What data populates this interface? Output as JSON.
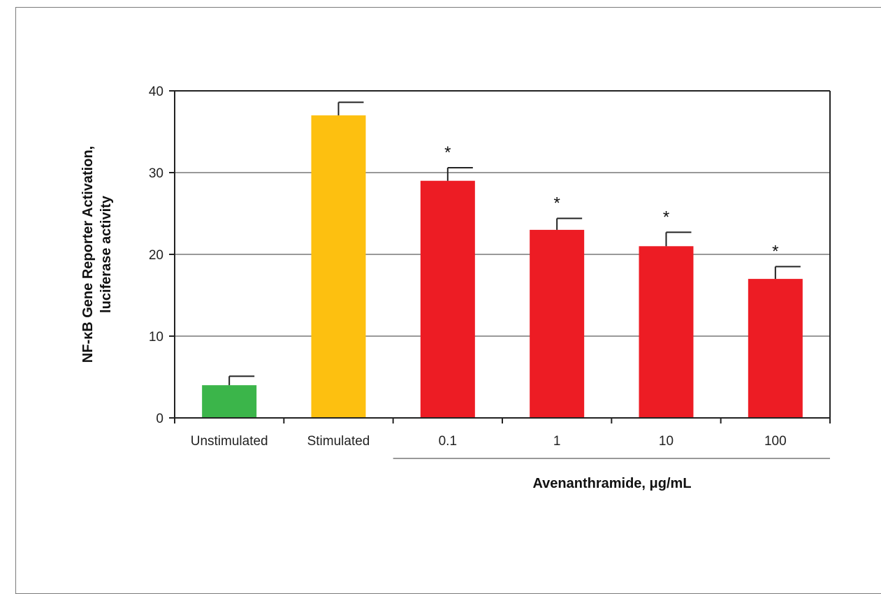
{
  "chart_data": {
    "type": "bar",
    "categories": [
      "Unstimulated",
      "Stimulated",
      "0.1",
      "1",
      "10",
      "100"
    ],
    "values": [
      4,
      37,
      29,
      23,
      21,
      17
    ],
    "errors": [
      1.1,
      1.6,
      1.6,
      1.4,
      1.7,
      1.5
    ],
    "colors": [
      "#3BB54A",
      "#FDC010",
      "#ED1C24",
      "#ED1C24",
      "#ED1C24",
      "#ED1C24"
    ],
    "significance": [
      "",
      "",
      "*",
      "*",
      "*",
      "*"
    ],
    "ylabel_line1": "NF-κB Gene Reporter Activation,",
    "ylabel_line2": "luciferase activity",
    "group_label": "Avenanthramide, μg/mL",
    "ylim": [
      0,
      40
    ],
    "yticks": [
      0,
      10,
      20,
      30,
      40
    ],
    "grid": true
  }
}
